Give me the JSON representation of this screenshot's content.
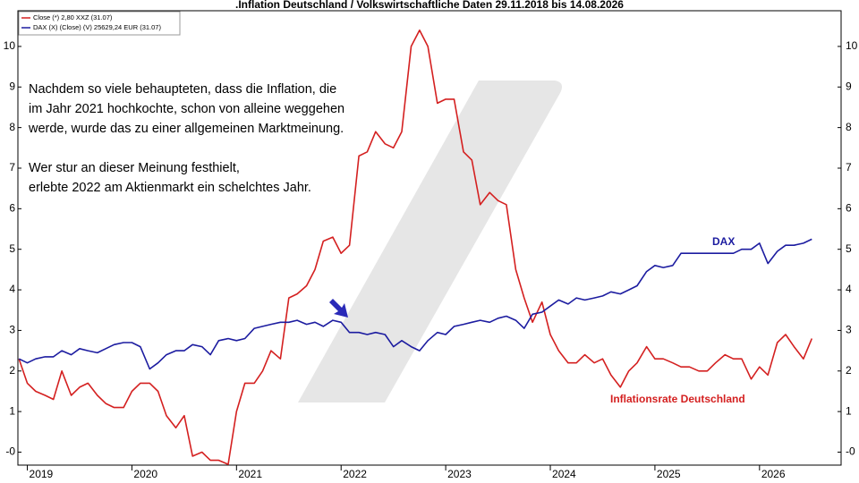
{
  "chart_data": {
    "type": "line",
    "title": ".Inflation Deutschland / Volkswirtschaftliche Daten 29.11.2018 bis 14.08.2026",
    "legend": [
      "Close (*) 2,80 XXZ (31.07)",
      "DAX (X) (Close) (V) 25629,24 EUR (31.07)"
    ],
    "annotations": [
      [
        "Nachdem so viele behaupteten, dass die Inflation, die",
        "im Jahr 2021 hochkochte, schon von alleine weggehen",
        "werde, wurde das zu einer allgemeinen Marktmeinung."
      ],
      [
        "Wer stur an dieser Meinung festhielt,",
        "erlebte 2022 am Aktienmarkt ein schelchtes Jahr."
      ]
    ],
    "x": [
      2018.92,
      2019.0,
      2019.08,
      2019.17,
      2019.25,
      2019.33,
      2019.42,
      2019.5,
      2019.58,
      2019.67,
      2019.75,
      2019.83,
      2019.92,
      2020.0,
      2020.08,
      2020.17,
      2020.25,
      2020.33,
      2020.42,
      2020.5,
      2020.58,
      2020.67,
      2020.75,
      2020.83,
      2020.92,
      2021.0,
      2021.08,
      2021.17,
      2021.25,
      2021.33,
      2021.42,
      2021.5,
      2021.58,
      2021.67,
      2021.75,
      2021.83,
      2021.92,
      2022.0,
      2022.08,
      2022.17,
      2022.25,
      2022.33,
      2022.42,
      2022.5,
      2022.58,
      2022.67,
      2022.75,
      2022.83,
      2022.92,
      2023.0,
      2023.08,
      2023.17,
      2023.25,
      2023.33,
      2023.42,
      2023.5,
      2023.58,
      2023.67,
      2023.75,
      2023.83,
      2023.92,
      2024.0,
      2024.08,
      2024.17,
      2024.25,
      2024.33,
      2024.42,
      2024.5,
      2024.58,
      2024.67,
      2024.75,
      2024.83,
      2024.92,
      2025.0,
      2025.08,
      2025.17,
      2025.25,
      2025.33,
      2025.42,
      2025.5,
      2025.58,
      2025.67,
      2025.75,
      2025.83,
      2025.92,
      2026.0,
      2026.08,
      2026.17,
      2026.25,
      2026.33,
      2026.42,
      2026.5
    ],
    "series": [
      {
        "name": "Inflationsrate Deutschland",
        "color": "#d42020",
        "values": [
          2.3,
          1.7,
          1.5,
          1.4,
          1.3,
          2.0,
          1.4,
          1.6,
          1.7,
          1.4,
          1.2,
          1.1,
          1.1,
          1.5,
          1.7,
          1.7,
          1.5,
          0.9,
          0.6,
          0.9,
          -0.1,
          0,
          -0.2,
          -0.2,
          -0.3,
          1.0,
          1.7,
          1.7,
          2.0,
          2.5,
          2.3,
          3.8,
          3.9,
          4.1,
          4.5,
          5.2,
          5.3,
          4.9,
          5.1,
          7.3,
          7.4,
          7.9,
          7.6,
          7.5,
          7.9,
          10.0,
          10.4,
          10.0,
          8.6,
          8.7,
          8.7,
          7.4,
          7.2,
          6.1,
          6.4,
          6.2,
          6.1,
          4.5,
          3.8,
          3.2,
          3.7,
          2.9,
          2.5,
          2.2,
          2.2,
          2.4,
          2.2,
          2.3,
          1.9,
          1.6,
          2.0,
          2.2,
          2.6,
          2.3,
          2.3,
          2.2,
          2.1,
          2.1,
          2.0,
          2.0,
          2.2,
          2.4,
          2.3,
          2.3,
          1.8,
          2.1,
          1.9,
          2.7,
          2.9,
          2.6,
          2.3,
          2.8
        ]
      },
      {
        "name": "DAX",
        "color": "#1c1ca0",
        "values": [
          2.3,
          2.2,
          2.3,
          2.35,
          2.35,
          2.5,
          2.4,
          2.55,
          2.5,
          2.45,
          2.55,
          2.65,
          2.7,
          2.7,
          2.6,
          2.05,
          2.2,
          2.4,
          2.5,
          2.5,
          2.65,
          2.6,
          2.4,
          2.75,
          2.8,
          2.75,
          2.8,
          3.05,
          3.1,
          3.15,
          3.2,
          3.2,
          3.25,
          3.15,
          3.2,
          3.1,
          3.25,
          3.2,
          2.95,
          2.95,
          2.9,
          2.95,
          2.9,
          2.6,
          2.75,
          2.6,
          2.5,
          2.75,
          2.95,
          2.9,
          3.1,
          3.15,
          3.2,
          3.25,
          3.2,
          3.3,
          3.35,
          3.25,
          3.05,
          3.4,
          3.45,
          3.6,
          3.75,
          3.65,
          3.8,
          3.75,
          3.8,
          3.85,
          3.95,
          3.9,
          4.0,
          4.1,
          4.45,
          4.6,
          4.55,
          4.6,
          4.9,
          4.9,
          4.9,
          4.9,
          4.9,
          4.9,
          4.9,
          5.0,
          5.0,
          5.15,
          4.65,
          4.95,
          5.1,
          5.1,
          5.15,
          5.25
        ]
      }
    ],
    "xlim": [
      2018.91,
      2026.78
    ],
    "xticks": [
      2019,
      2020,
      2021,
      2022,
      2023,
      2024,
      2025,
      2026
    ],
    "ylim": [
      -0.32,
      10.88
    ],
    "yticks": [
      {
        "value": 0,
        "label": "-0"
      },
      1,
      2,
      3,
      4,
      5,
      6,
      7,
      8,
      9,
      10
    ]
  }
}
